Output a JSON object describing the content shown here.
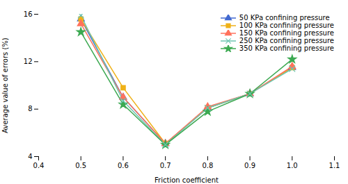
{
  "chart_data": {
    "type": "line",
    "x": [
      0.5,
      0.6,
      0.7,
      0.8,
      0.9,
      1.0
    ],
    "series": [
      {
        "name": "50 KPa confining pressure",
        "marker": "triangle",
        "values": [
          15.6,
          9.0,
          5.1,
          8.1,
          9.3,
          11.5
        ]
      },
      {
        "name": "100 KPa confining pressure",
        "marker": "square",
        "values": [
          15.6,
          9.8,
          5.1,
          8.1,
          9.3,
          11.5
        ]
      },
      {
        "name": "150 KPa confining pressure",
        "marker": "triangle",
        "values": [
          15.2,
          9.0,
          5.1,
          8.2,
          9.3,
          11.6
        ]
      },
      {
        "name": "250 KPa confining pressure",
        "marker": "x",
        "values": [
          15.9,
          8.7,
          5.0,
          8.1,
          9.3,
          11.4
        ]
      },
      {
        "name": "350 KPa confining pressure",
        "marker": "star",
        "values": [
          14.5,
          8.4,
          5.0,
          7.8,
          9.3,
          12.2
        ]
      }
    ],
    "xlabel": "Friction coefficient",
    "ylabel": "Average value of errors (%)",
    "xlim": [
      0.4,
      1.1
    ],
    "xticks": [
      0.4,
      0.5,
      0.6,
      0.7,
      0.8,
      0.9,
      {
        "value": 1.0,
        "label": "1.0"
      },
      1.1
    ],
    "ylim": [
      4,
      16
    ],
    "yticks": [
      4,
      8,
      12,
      16
    ],
    "grid": false,
    "legend": "upper right"
  }
}
